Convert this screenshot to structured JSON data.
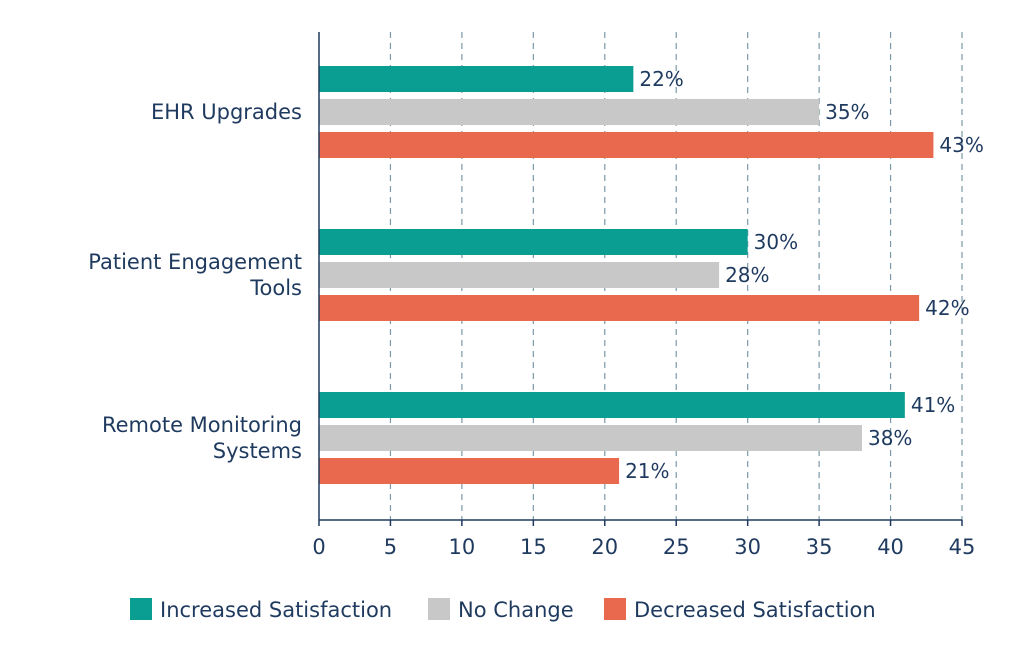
{
  "chart_data": {
    "type": "bar",
    "orientation": "horizontal",
    "categories": [
      "EHR Upgrades",
      "Patient Engagement Tools",
      "Remote Monitoring Systems"
    ],
    "category_lines": [
      [
        "EHR Upgrades"
      ],
      [
        "Patient Engagement",
        "Tools"
      ],
      [
        "Remote Monitoring",
        "Systems"
      ]
    ],
    "series": [
      {
        "name": "Increased Satisfaction",
        "color": "#0a9e92",
        "values": [
          22,
          30,
          41
        ],
        "labels": [
          "22%",
          "30%",
          "41%"
        ]
      },
      {
        "name": "No Change",
        "color": "#c8c8c8",
        "values": [
          35,
          28,
          38
        ],
        "labels": [
          "35%",
          "28%",
          "38%"
        ]
      },
      {
        "name": "Decreased Satisfaction",
        "color": "#e8694d",
        "values": [
          43,
          42,
          21
        ],
        "labels": [
          "43%",
          "42%",
          "21%"
        ]
      }
    ],
    "xlim": [
      0,
      45
    ],
    "xticks": [
      0,
      5,
      10,
      15,
      20,
      25,
      30,
      35,
      40,
      45
    ],
    "grid": "vertical dashed",
    "legend": "bottom",
    "title": "",
    "xlabel": "",
    "ylabel": "",
    "axis_color": "#1f3a5f",
    "grid_color": "#7a9aa8"
  }
}
